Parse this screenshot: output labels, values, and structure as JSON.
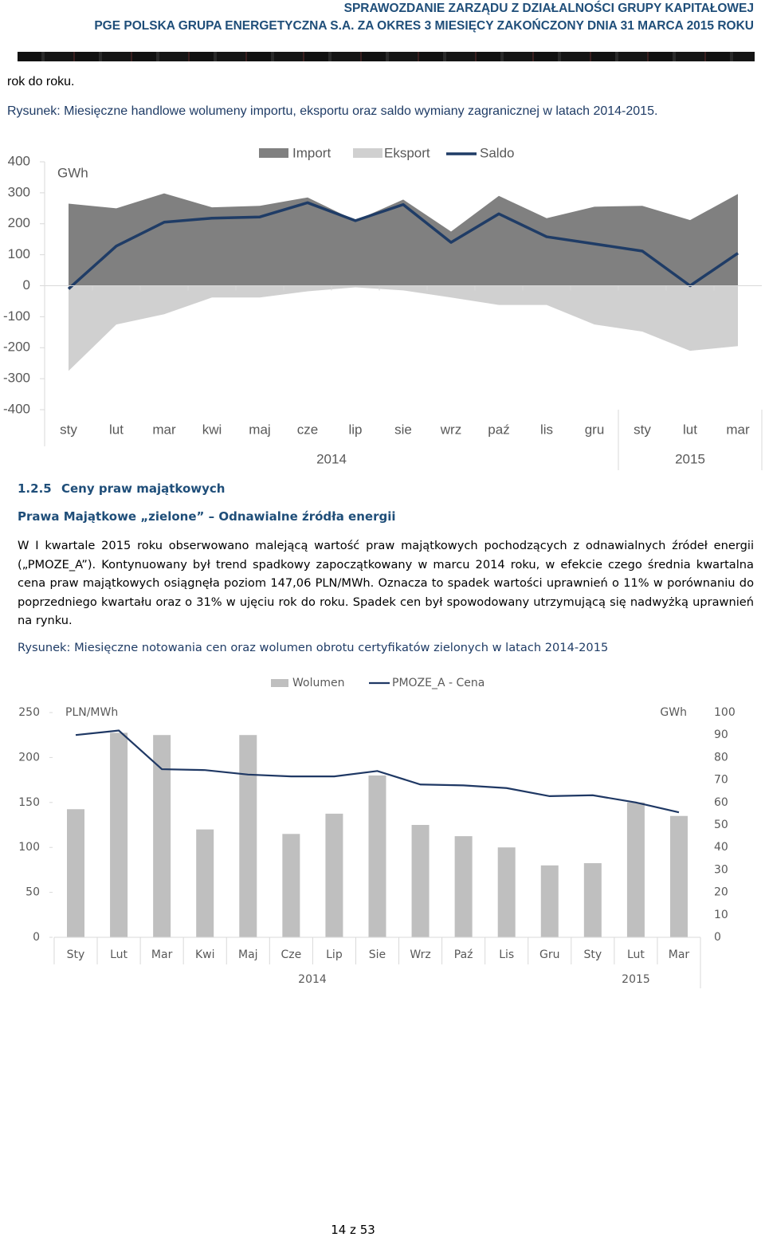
{
  "header": {
    "line1": "SPRAWOZDANIE ZARZĄDU Z DZIAŁALNOŚCI GRUPY KAPITAŁOWEJ",
    "line2": "PGE POLSKA GRUPA ENERGETYCZNA S.A. ZA OKRES 3 MIESIĘCY ZAKOŃCZONY DNIA 31 MARCA 2015 ROKU"
  },
  "intro": "rok do roku.",
  "figure1_caption": "Rysunek: Miesięczne handlowe wolumeny importu, eksportu oraz saldo wymiany zagranicznej w latach 2014-2015.",
  "section": {
    "number": "1.2.5",
    "title": "Ceny praw majątkowych"
  },
  "subsection": "Prawa Majątkowe „zielone” – Odnawialne źródła energii",
  "paragraph": "W I kwartale 2015 roku obserwowano malejącą wartość praw majątkowych pochodzących z odnawialnych źródeł energii („PMOZE_A”). Kontynuowany był trend spadkowy zapoczątkowany w marcu 2014 roku, w efekcie czego średnia kwartalna cena praw majątkowych osiągnęła poziom 147,06 PLN/MWh. Oznacza to spadek wartości uprawnień o 11% w porównaniu do poprzedniego kwartału oraz o 31% w ujęciu rok do roku. Spadek cen był spowodowany utrzymującą się nadwyżką uprawnień na rynku.",
  "figure2_caption": "Rysunek: Miesięczne notowania cen oraz wolumen obrotu certyfikatów zielonych w latach 2014-2015",
  "footer": "14 z 53",
  "chart_data": [
    {
      "type": "combo",
      "y_label": "GWh",
      "categories": [
        "sty",
        "lut",
        "mar",
        "kwi",
        "maj",
        "cze",
        "lip",
        "sie",
        "wrz",
        "paź",
        "lis",
        "gru",
        "sty",
        "lut",
        "mar"
      ],
      "groups": [
        "2014",
        "2015"
      ],
      "ylim": [
        -400,
        400
      ],
      "yticks": [
        -400,
        -300,
        -200,
        -100,
        0,
        100,
        200,
        300,
        400
      ],
      "series": [
        {
          "name": "Import",
          "type": "area",
          "color": "#808080",
          "values": [
            265,
            250,
            298,
            253,
            258,
            285,
            210,
            278,
            175,
            290,
            218,
            255,
            258,
            212,
            296
          ]
        },
        {
          "name": "Eksport",
          "type": "area",
          "color": "#d0d0d0",
          "values": [
            -275,
            -125,
            -92,
            -38,
            -38,
            -18,
            -5,
            -15,
            -38,
            -62,
            -62,
            -125,
            -148,
            -210,
            -195
          ]
        },
        {
          "name": "Saldo",
          "type": "line",
          "color": "#1f3c66",
          "values": [
            -10,
            128,
            205,
            218,
            222,
            268,
            210,
            262,
            140,
            232,
            158,
            135,
            112,
            0,
            105
          ]
        }
      ]
    },
    {
      "type": "combo",
      "y_label": "PLN/MWh",
      "y2_label": "GWh",
      "categories": [
        "Sty",
        "Lut",
        "Mar",
        "Kwi",
        "Maj",
        "Cze",
        "Lip",
        "Sie",
        "Wrz",
        "Paź",
        "Lis",
        "Gru",
        "Sty",
        "Lut",
        "Mar"
      ],
      "groups": [
        "2014",
        "2015"
      ],
      "ylim": [
        0,
        250
      ],
      "yticks": [
        0,
        50,
        100,
        150,
        200,
        250
      ],
      "y2lim": [
        0,
        100
      ],
      "y2ticks": [
        0,
        10,
        20,
        30,
        40,
        50,
        60,
        70,
        80,
        90,
        100
      ],
      "series": [
        {
          "name": "Wolumen",
          "type": "bar",
          "axis": "y2",
          "color": "#bfbfbf",
          "values": [
            57,
            91,
            90,
            48,
            90,
            46,
            55,
            72,
            50,
            45,
            40,
            32,
            33,
            60,
            54
          ]
        },
        {
          "name": "PMOZE_A - Cena",
          "type": "line",
          "color": "#1f3864",
          "values": [
            225,
            230,
            187,
            186,
            181,
            179,
            179,
            185,
            170,
            169,
            166,
            157,
            158,
            150,
            139
          ]
        }
      ]
    }
  ]
}
